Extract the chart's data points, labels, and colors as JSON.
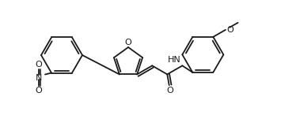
{
  "bg_color": "#ffffff",
  "line_color": "#1a1a1a",
  "line_width": 1.3,
  "font_size": 8.0,
  "fig_width": 3.55,
  "fig_height": 1.46,
  "dpi": 100,
  "xlim": [
    0,
    355
  ],
  "ylim": [
    0,
    146
  ]
}
